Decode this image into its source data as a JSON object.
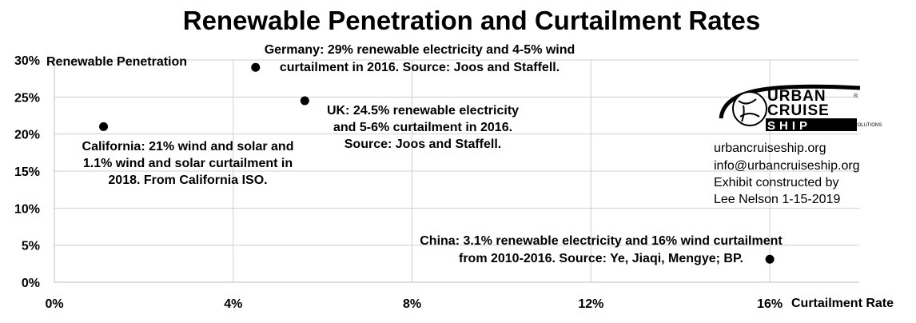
{
  "chart_data": {
    "type": "scatter",
    "title": "Renewable Penetration and Curtailment Rates",
    "xlabel": "Curtailment Rate",
    "ylabel": "Renewable Penetration",
    "xlim": [
      0,
      0.18
    ],
    "ylim": [
      0,
      0.3
    ],
    "x_ticks": [
      "0%",
      "4%",
      "8%",
      "12%",
      "16%"
    ],
    "y_ticks": [
      "0%",
      "5%",
      "10%",
      "15%",
      "20%",
      "25%",
      "30%"
    ],
    "grid": true,
    "points": [
      {
        "x": 0.011,
        "y": 0.21,
        "annotation": [
          "California: 21% wind and solar and",
          "1.1% wind and solar curtailment in",
          "2018. From California ISO."
        ]
      },
      {
        "x": 0.045,
        "y": 0.29,
        "annotation": [
          "Germany: 29% renewable electricity and 4-5% wind",
          "curtailment in 2016. Source: Joos and Staffell."
        ]
      },
      {
        "x": 0.056,
        "y": 0.245,
        "annotation": [
          "UK: 24.5% renewable electricity",
          "and 5-6% curtailment in 2016.",
          "Source: Joos and Staffell."
        ]
      },
      {
        "x": 0.16,
        "y": 0.031,
        "annotation": [
          "China: 3.1% renewable electricity and 16% wind curtailment",
          "from 2010-2016. Source: Ye, Jiaqi, Mengye; BP."
        ]
      }
    ]
  },
  "logo": {
    "line1": "URBAN",
    "line2": "CRUISE",
    "line3": "SHIP",
    "tagline": "ANALYSIS SOLUTIONS",
    "registered": "®"
  },
  "credits": [
    "urbancruiseship.org",
    "info@urbancruiseship.org",
    "Exhibit constructed by",
    "Lee Nelson 1-15-2019"
  ],
  "colors": {
    "marker": "#000000",
    "grid": "#d0d0d0",
    "text": "#000000"
  }
}
